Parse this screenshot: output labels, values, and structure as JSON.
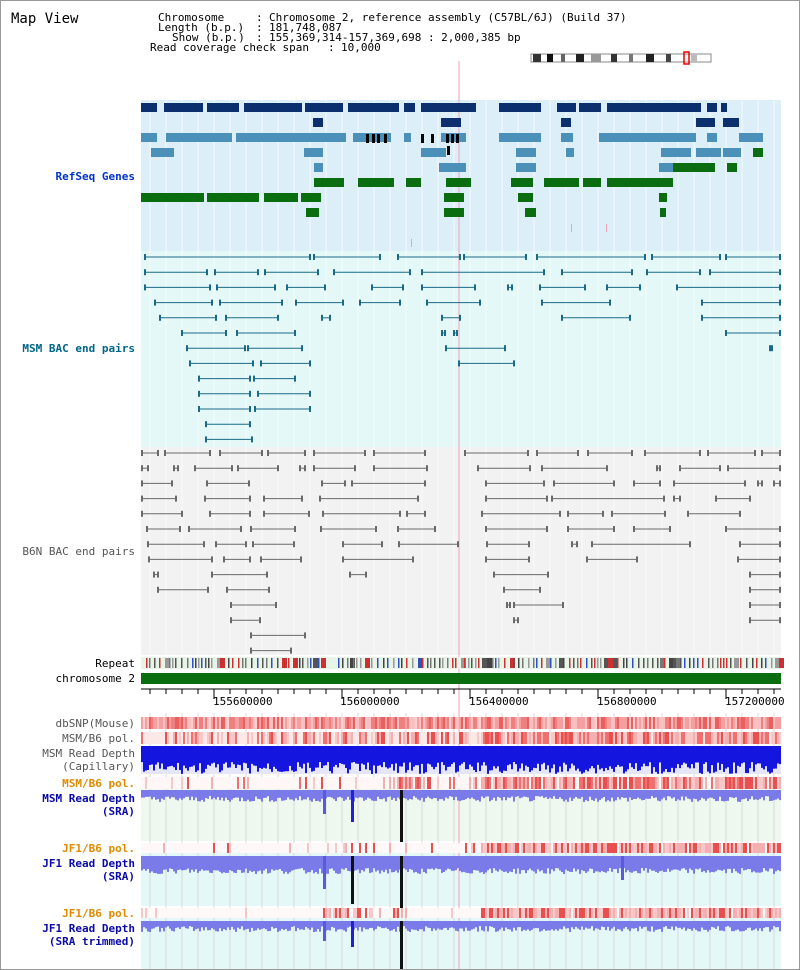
{
  "title": "Map View",
  "header": {
    "chromosome_label": "Chromosome",
    "chromosome_value": "Chromosome 2, reference assembly (C57BL/6J) (Build 37)",
    "length_label": "Length (b.p.)",
    "length_value": "181,748,087",
    "show_label": "Show (b.p.)",
    "show_value": "155,369,314-157,369,698 : 2,000,385 bp",
    "span_label": "Read coverage check span",
    "span_value": "10,000"
  },
  "tracks": {
    "refseq": "RefSeq Genes",
    "msm_bac": "MSM BAC end pairs",
    "b6n_bac": "B6N BAC end pairs",
    "repeat": "Repeat",
    "chromosome": "chromosome 2",
    "dbsnp": "dbSNP(Mouse)",
    "msm_b6_pol_1": "MSM/B6 pol.",
    "msm_depth_cap_1": "MSM Read Depth",
    "msm_depth_cap_2": "(Capillary)",
    "msm_b6_pol_2": "MSM/B6 pol.",
    "msm_depth_sra_1": "MSM Read Depth",
    "msm_depth_sra_2": "(SRA)",
    "jf1_b6_pol_1": "JF1/B6 pol.",
    "jf1_depth_sra_1": "JF1 Read Depth",
    "jf1_depth_sra_2": "(SRA)",
    "jf1_b6_pol_2": "JF1/B6 pol.",
    "jf1_depth_trim_1": "JF1 Read Depth",
    "jf1_depth_trim_2": "(SRA trimmed)"
  },
  "axis": {
    "ticks": [
      "155600000",
      "156000000",
      "156400000",
      "156800000",
      "157200000"
    ]
  },
  "colors": {
    "refseq_bg": "#dceff8",
    "msm_bg": "#e4f8f8",
    "b6n_bg": "#f2f2f2",
    "gene_dark": "#0c2f6e",
    "gene_mid": "#4a90b8",
    "gene_green": "#0a6e10",
    "chromosome_bar": "#0a6e10",
    "msm_line": "#1a6a88",
    "b6n_line": "#6a6a6a",
    "depth_dark": "#1515e0",
    "depth_light": "#7a7ae8",
    "snp_red": "#f08080"
  }
}
